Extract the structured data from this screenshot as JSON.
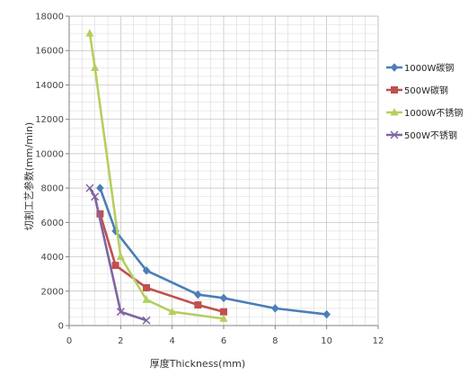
{
  "chart_data": {
    "type": "line",
    "title": "",
    "xlabel": "厚度Thickness(mm)",
    "ylabel": "切割工艺参数(mm/min)",
    "xlim": [
      0,
      12
    ],
    "ylim": [
      0,
      18000
    ],
    "x_ticks": [
      0,
      2,
      4,
      6,
      8,
      10,
      12
    ],
    "y_ticks": [
      0,
      2000,
      4000,
      6000,
      8000,
      10000,
      12000,
      14000,
      16000,
      18000
    ],
    "grid": true,
    "legend_position": "right",
    "series": [
      {
        "name": "1000W碳钢",
        "color": "#4a7eb8",
        "marker": "diamond",
        "points": [
          [
            1.2,
            8000
          ],
          [
            1.8,
            5500
          ],
          [
            3,
            3200
          ],
          [
            5,
            1800
          ],
          [
            6,
            1600
          ],
          [
            8,
            1000
          ],
          [
            10,
            650
          ]
        ]
      },
      {
        "name": "500W碳钢",
        "color": "#c0504d",
        "marker": "square",
        "points": [
          [
            1.2,
            6500
          ],
          [
            1.8,
            3500
          ],
          [
            3,
            2200
          ],
          [
            5,
            1200
          ],
          [
            6,
            800
          ]
        ]
      },
      {
        "name": "1000W不锈钢",
        "color": "#b5cf5e",
        "marker": "triangle",
        "points": [
          [
            0.8,
            17000
          ],
          [
            1,
            15000
          ],
          [
            2,
            4000
          ],
          [
            3,
            1500
          ],
          [
            4,
            800
          ],
          [
            6,
            400
          ]
        ]
      },
      {
        "name": "500W不锈钢",
        "color": "#8064a2",
        "marker": "x",
        "points": [
          [
            0.8,
            8000
          ],
          [
            1,
            7500
          ],
          [
            2,
            800
          ],
          [
            3,
            300
          ]
        ]
      }
    ]
  }
}
